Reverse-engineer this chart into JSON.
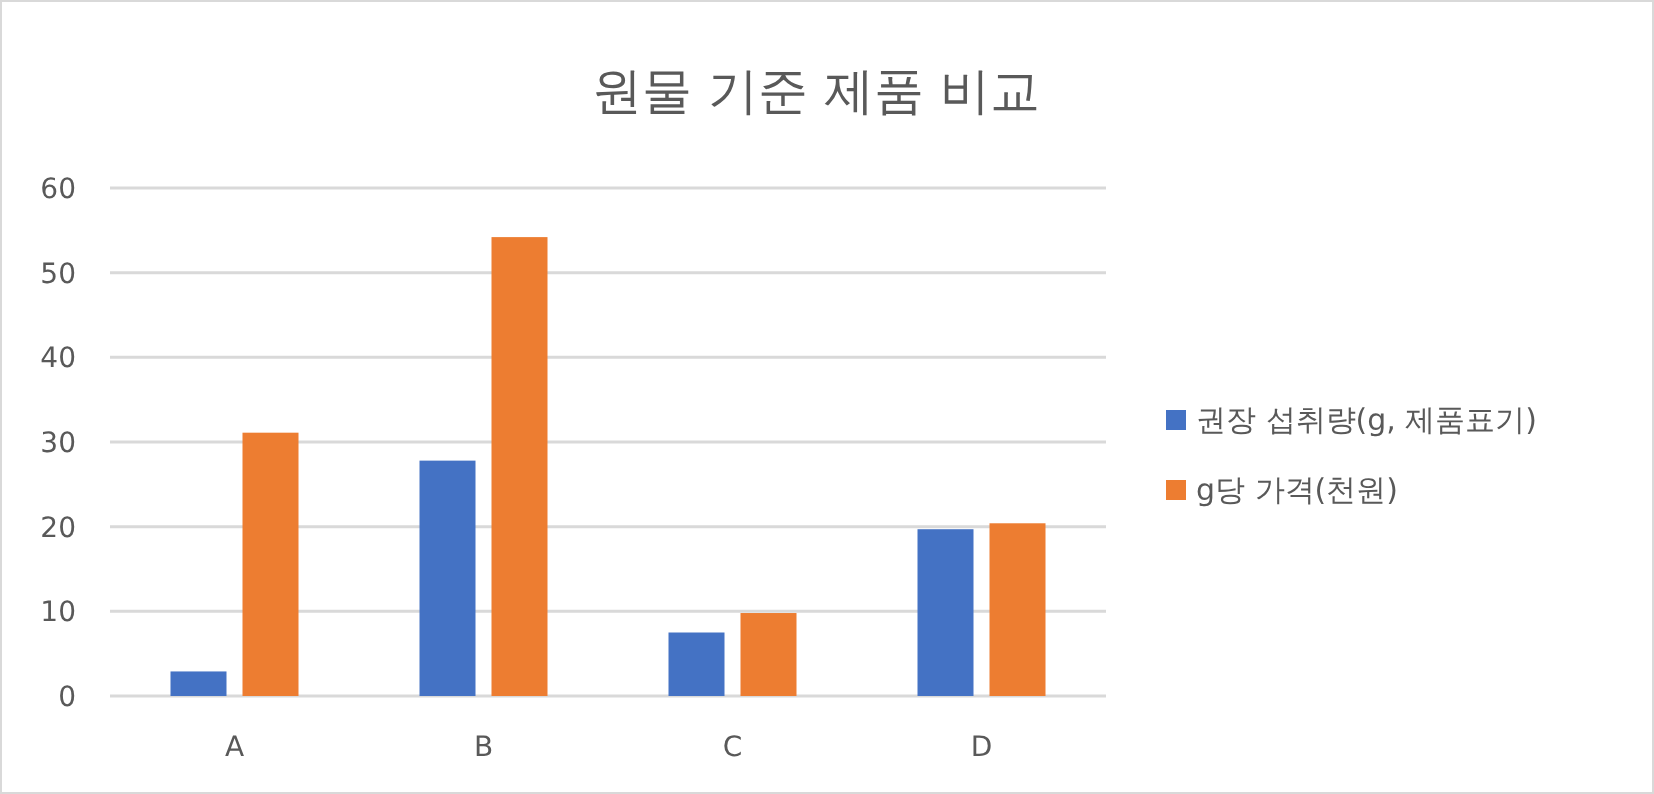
{
  "chart_data": {
    "type": "bar",
    "title": "원물 기준 제품 비교",
    "categories": [
      "A",
      "B",
      "C",
      "D"
    ],
    "series": [
      {
        "name": "권장 섭취량(g, 제품표기)",
        "color": "#4472c4",
        "values": [
          2.9,
          27.8,
          7.5,
          19.7
        ]
      },
      {
        "name": "g당 가격(천원)",
        "color": "#ed7d31",
        "values": [
          31.1,
          54.2,
          9.8,
          20.4
        ]
      }
    ],
    "ylim": [
      0,
      60
    ],
    "yticks": [
      0,
      10,
      20,
      30,
      40,
      50,
      60
    ],
    "grid": "y",
    "legend": "right"
  }
}
